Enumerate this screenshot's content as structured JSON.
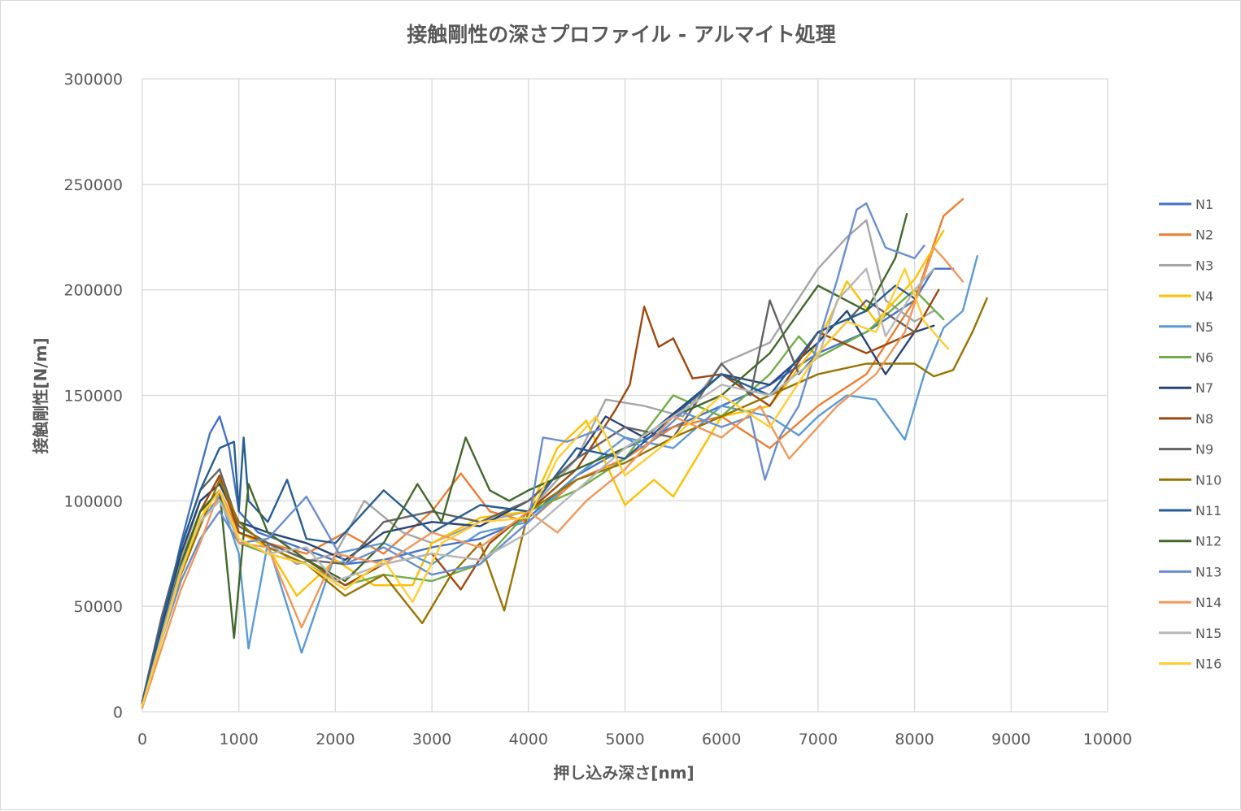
{
  "chart_data": {
    "type": "line",
    "title": "接触剛性の深さプロファイル - アルマイト処理",
    "xlabel": "押し込み深さ[nm]",
    "ylabel": "接触剛性[N/m]",
    "xlim": [
      0,
      10000
    ],
    "ylim": [
      0,
      300000
    ],
    "x_ticks": [
      "0",
      "1000",
      "2000",
      "3000",
      "4000",
      "5000",
      "6000",
      "7000",
      "8000",
      "9000",
      "10000"
    ],
    "y_ticks": [
      "0",
      "50000",
      "100000",
      "150000",
      "200000",
      "250000",
      "300000"
    ],
    "grid": true,
    "legend_position": "right",
    "series": [
      {
        "name": "N1",
        "color": "#4472C4",
        "x": [
          0,
          200,
          400,
          600,
          700,
          800,
          900,
          1000,
          1200,
          1500,
          1800,
          2100,
          2500,
          3000,
          3500,
          4000,
          4500,
          5000,
          5500,
          6000,
          6500,
          7000,
          7500,
          8000,
          8200,
          8400
        ],
        "y": [
          5000,
          40000,
          80000,
          115000,
          132000,
          140000,
          125000,
          95000,
          85000,
          80000,
          75000,
          70000,
          72000,
          78000,
          82000,
          92000,
          112000,
          125000,
          135000,
          145000,
          155000,
          170000,
          180000,
          195000,
          210000,
          210000
        ]
      },
      {
        "name": "N2",
        "color": "#ED7D31",
        "x": [
          0,
          200,
          400,
          600,
          800,
          1000,
          1300,
          1700,
          2100,
          2500,
          3000,
          3300,
          3600,
          4000,
          4500,
          5000,
          5500,
          6000,
          6500,
          7000,
          7500,
          8000,
          8300,
          8500
        ],
        "y": [
          3000,
          35000,
          70000,
          95000,
          105000,
          85000,
          80000,
          75000,
          85000,
          75000,
          95000,
          113000,
          95000,
          90000,
          110000,
          120000,
          135000,
          140000,
          125000,
          145000,
          160000,
          195000,
          235000,
          243000
        ]
      },
      {
        "name": "N3",
        "color": "#A5A5A5",
        "x": [
          0,
          200,
          400,
          600,
          800,
          1000,
          1300,
          1600,
          2000,
          2300,
          2700,
          3000,
          3500,
          4000,
          4500,
          4800,
          5200,
          5600,
          6000,
          6500,
          7000,
          7300,
          7500,
          7700,
          8000,
          8200
        ],
        "y": [
          4000,
          38000,
          72000,
          100000,
          108000,
          88000,
          80000,
          70000,
          75000,
          100000,
          85000,
          80000,
          90000,
          95000,
          120000,
          148000,
          145000,
          140000,
          165000,
          175000,
          210000,
          225000,
          233000,
          195000,
          185000,
          190000
        ]
      },
      {
        "name": "N4",
        "color": "#FFC000",
        "x": [
          0,
          200,
          400,
          600,
          800,
          1000,
          1300,
          1600,
          2000,
          2400,
          2800,
          3000,
          3500,
          4000,
          4300,
          4600,
          5000,
          5300,
          5500,
          6000,
          6500,
          7000,
          7300,
          7600,
          8000,
          8300
        ],
        "y": [
          3000,
          36000,
          70000,
          95000,
          100000,
          85000,
          78000,
          55000,
          72000,
          60000,
          60000,
          80000,
          92000,
          95000,
          125000,
          138000,
          98000,
          110000,
          102000,
          140000,
          145000,
          175000,
          204000,
          185000,
          205000,
          228000
        ]
      },
      {
        "name": "N5",
        "color": "#5B9BD5",
        "x": [
          0,
          200,
          400,
          600,
          800,
          1000,
          1100,
          1300,
          1650,
          2000,
          2500,
          3000,
          3500,
          4000,
          4500,
          5000,
          5500,
          6000,
          6500,
          6800,
          7000,
          7300,
          7600,
          7900,
          8100,
          8300,
          8500,
          8650
        ],
        "y": [
          3000,
          36000,
          68000,
          90000,
          102000,
          75000,
          30000,
          80000,
          28000,
          75000,
          80000,
          70000,
          85000,
          90000,
          112000,
          130000,
          125000,
          145000,
          140000,
          131000,
          140000,
          150000,
          148000,
          129000,
          160000,
          182000,
          190000,
          216000
        ]
      },
      {
        "name": "N6",
        "color": "#70AD47",
        "x": [
          0,
          200,
          400,
          600,
          800,
          1000,
          1300,
          1700,
          2100,
          2500,
          3000,
          3500,
          4000,
          4500,
          5000,
          5500,
          6000,
          6500,
          6800,
          7000,
          7500,
          8000,
          8300
        ],
        "y": [
          3000,
          35000,
          68000,
          95000,
          104000,
          80000,
          75000,
          70000,
          60000,
          65000,
          62000,
          70000,
          95000,
          105000,
          120000,
          150000,
          140000,
          160000,
          178000,
          168000,
          180000,
          200000,
          186000
        ]
      },
      {
        "name": "N7",
        "color": "#264478",
        "x": [
          0,
          200,
          400,
          600,
          800,
          1000,
          1300,
          1700,
          2100,
          2500,
          3000,
          3500,
          4000,
          4500,
          4800,
          5200,
          5600,
          6000,
          6500,
          7000,
          7300,
          7700,
          8000,
          8200
        ],
        "y": [
          4000,
          40000,
          75000,
          100000,
          108000,
          90000,
          85000,
          80000,
          72000,
          85000,
          90000,
          88000,
          100000,
          120000,
          140000,
          130000,
          145000,
          160000,
          155000,
          175000,
          190000,
          160000,
          180000,
          183000
        ]
      },
      {
        "name": "N8",
        "color": "#9E480E",
        "x": [
          0,
          200,
          400,
          600,
          800,
          1000,
          1300,
          1700,
          2100,
          2500,
          3000,
          3300,
          3600,
          4000,
          4500,
          4900,
          5050,
          5200,
          5350,
          5500,
          5700,
          6000,
          6500,
          7000,
          7500,
          8000,
          8250
        ],
        "y": [
          3000,
          35000,
          70000,
          95000,
          112000,
          85000,
          80000,
          72000,
          60000,
          70000,
          75000,
          58000,
          80000,
          95000,
          115000,
          143000,
          155000,
          192000,
          173000,
          177000,
          158000,
          160000,
          145000,
          180000,
          170000,
          180000,
          200000
        ]
      },
      {
        "name": "N9",
        "color": "#636363",
        "x": [
          0,
          200,
          400,
          600,
          800,
          1000,
          1300,
          1700,
          2100,
          2500,
          3000,
          3500,
          4000,
          4500,
          5000,
          5500,
          6000,
          6300,
          6500,
          6800,
          7000,
          7500,
          8000
        ],
        "y": [
          5000,
          45000,
          78000,
          105000,
          115000,
          88000,
          80000,
          72000,
          70000,
          90000,
          95000,
          90000,
          100000,
          120000,
          135000,
          130000,
          165000,
          150000,
          195000,
          160000,
          170000,
          195000,
          180000
        ]
      },
      {
        "name": "N10",
        "color": "#997300",
        "x": [
          0,
          200,
          400,
          600,
          800,
          1000,
          1300,
          1700,
          2100,
          2500,
          2900,
          3200,
          3500,
          3750,
          4000,
          4500,
          5000,
          5500,
          6000,
          6500,
          7000,
          7500,
          8000,
          8200,
          8400,
          8600,
          8750
        ],
        "y": [
          3000,
          34000,
          65000,
          88000,
          110000,
          90000,
          78000,
          70000,
          55000,
          65000,
          42000,
          65000,
          80000,
          48000,
          95000,
          110000,
          118000,
          130000,
          140000,
          150000,
          160000,
          165000,
          165000,
          159000,
          162000,
          180000,
          196000
        ]
      },
      {
        "name": "N11",
        "color": "#255E91",
        "x": [
          0,
          200,
          400,
          600,
          800,
          950,
          1000,
          1050,
          1100,
          1300,
          1500,
          1700,
          2000,
          2500,
          3000,
          3500,
          4000,
          4500,
          5000,
          5500,
          6000,
          6500,
          7000,
          7500,
          7800,
          8000
        ],
        "y": [
          4000,
          42000,
          78000,
          105000,
          125000,
          128000,
          95000,
          130000,
          100000,
          90000,
          110000,
          82000,
          80000,
          105000,
          85000,
          98000,
          95000,
          125000,
          120000,
          140000,
          160000,
          150000,
          180000,
          190000,
          202000,
          196000
        ]
      },
      {
        "name": "N12",
        "color": "#43682B",
        "x": [
          0,
          200,
          400,
          600,
          800,
          950,
          1000,
          1100,
          1300,
          1700,
          2100,
          2500,
          2850,
          3100,
          3350,
          3600,
          3800,
          4000,
          4500,
          5000,
          5500,
          6000,
          6500,
          7000,
          7500,
          7800,
          7920
        ],
        "y": [
          3000,
          36000,
          70000,
          95000,
          105000,
          35000,
          60000,
          108000,
          85000,
          72000,
          62000,
          80000,
          108000,
          90000,
          130000,
          105000,
          100000,
          105000,
          115000,
          125000,
          140000,
          150000,
          170000,
          202000,
          190000,
          215000,
          236000
        ]
      },
      {
        "name": "N13",
        "color": "#698ED0",
        "x": [
          0,
          200,
          400,
          600,
          800,
          1000,
          1300,
          1700,
          2100,
          2500,
          3000,
          3500,
          4000,
          4150,
          4400,
          4800,
          5200,
          5600,
          6000,
          6300,
          6450,
          6600,
          6800,
          7000,
          7200,
          7400,
          7500,
          7700,
          8000,
          8100
        ],
        "y": [
          3000,
          34000,
          62000,
          82000,
          95000,
          80000,
          82000,
          102000,
          70000,
          78000,
          65000,
          70000,
          90000,
          130000,
          128000,
          135000,
          125000,
          142000,
          135000,
          140000,
          110000,
          130000,
          145000,
          175000,
          205000,
          238000,
          241000,
          220000,
          215000,
          221000
        ]
      },
      {
        "name": "N14",
        "color": "#F1975A",
        "x": [
          0,
          200,
          400,
          600,
          800,
          1000,
          1300,
          1650,
          2000,
          2500,
          3000,
          3500,
          4000,
          4300,
          4600,
          5000,
          5500,
          6000,
          6400,
          6700,
          6900,
          7200,
          7600,
          7900,
          8200,
          8300,
          8500
        ],
        "y": [
          2000,
          30000,
          58000,
          80000,
          105000,
          80000,
          78000,
          40000,
          75000,
          70000,
          85000,
          78000,
          95000,
          85000,
          100000,
          115000,
          140000,
          130000,
          145000,
          120000,
          130000,
          145000,
          160000,
          180000,
          220000,
          215000,
          204000
        ]
      },
      {
        "name": "N15",
        "color": "#B7B7B7",
        "x": [
          0,
          200,
          400,
          600,
          800,
          1000,
          1300,
          1700,
          2000,
          2500,
          3000,
          3500,
          4000,
          4500,
          5000,
          5500,
          6000,
          6500,
          7000,
          7200,
          7500,
          7700,
          8000,
          8200
        ],
        "y": [
          3000,
          36000,
          68000,
          90000,
          100000,
          82000,
          75000,
          78000,
          62000,
          70000,
          75000,
          72000,
          85000,
          105000,
          125000,
          140000,
          155000,
          150000,
          168000,
          195000,
          210000,
          178000,
          200000,
          210000
        ]
      },
      {
        "name": "N16",
        "color": "#FFCD33",
        "x": [
          0,
          200,
          400,
          600,
          800,
          1000,
          1300,
          1700,
          2100,
          2500,
          2800,
          3100,
          3500,
          4000,
          4300,
          4700,
          5000,
          5500,
          6000,
          6500,
          7000,
          7300,
          7600,
          7900,
          8100,
          8350
        ],
        "y": [
          3000,
          34000,
          66000,
          92000,
          105000,
          82000,
          75000,
          70000,
          58000,
          72000,
          52000,
          80000,
          90000,
          92000,
          120000,
          140000,
          112000,
          130000,
          150000,
          135000,
          170000,
          185000,
          180000,
          210000,
          185000,
          172000
        ]
      }
    ]
  }
}
